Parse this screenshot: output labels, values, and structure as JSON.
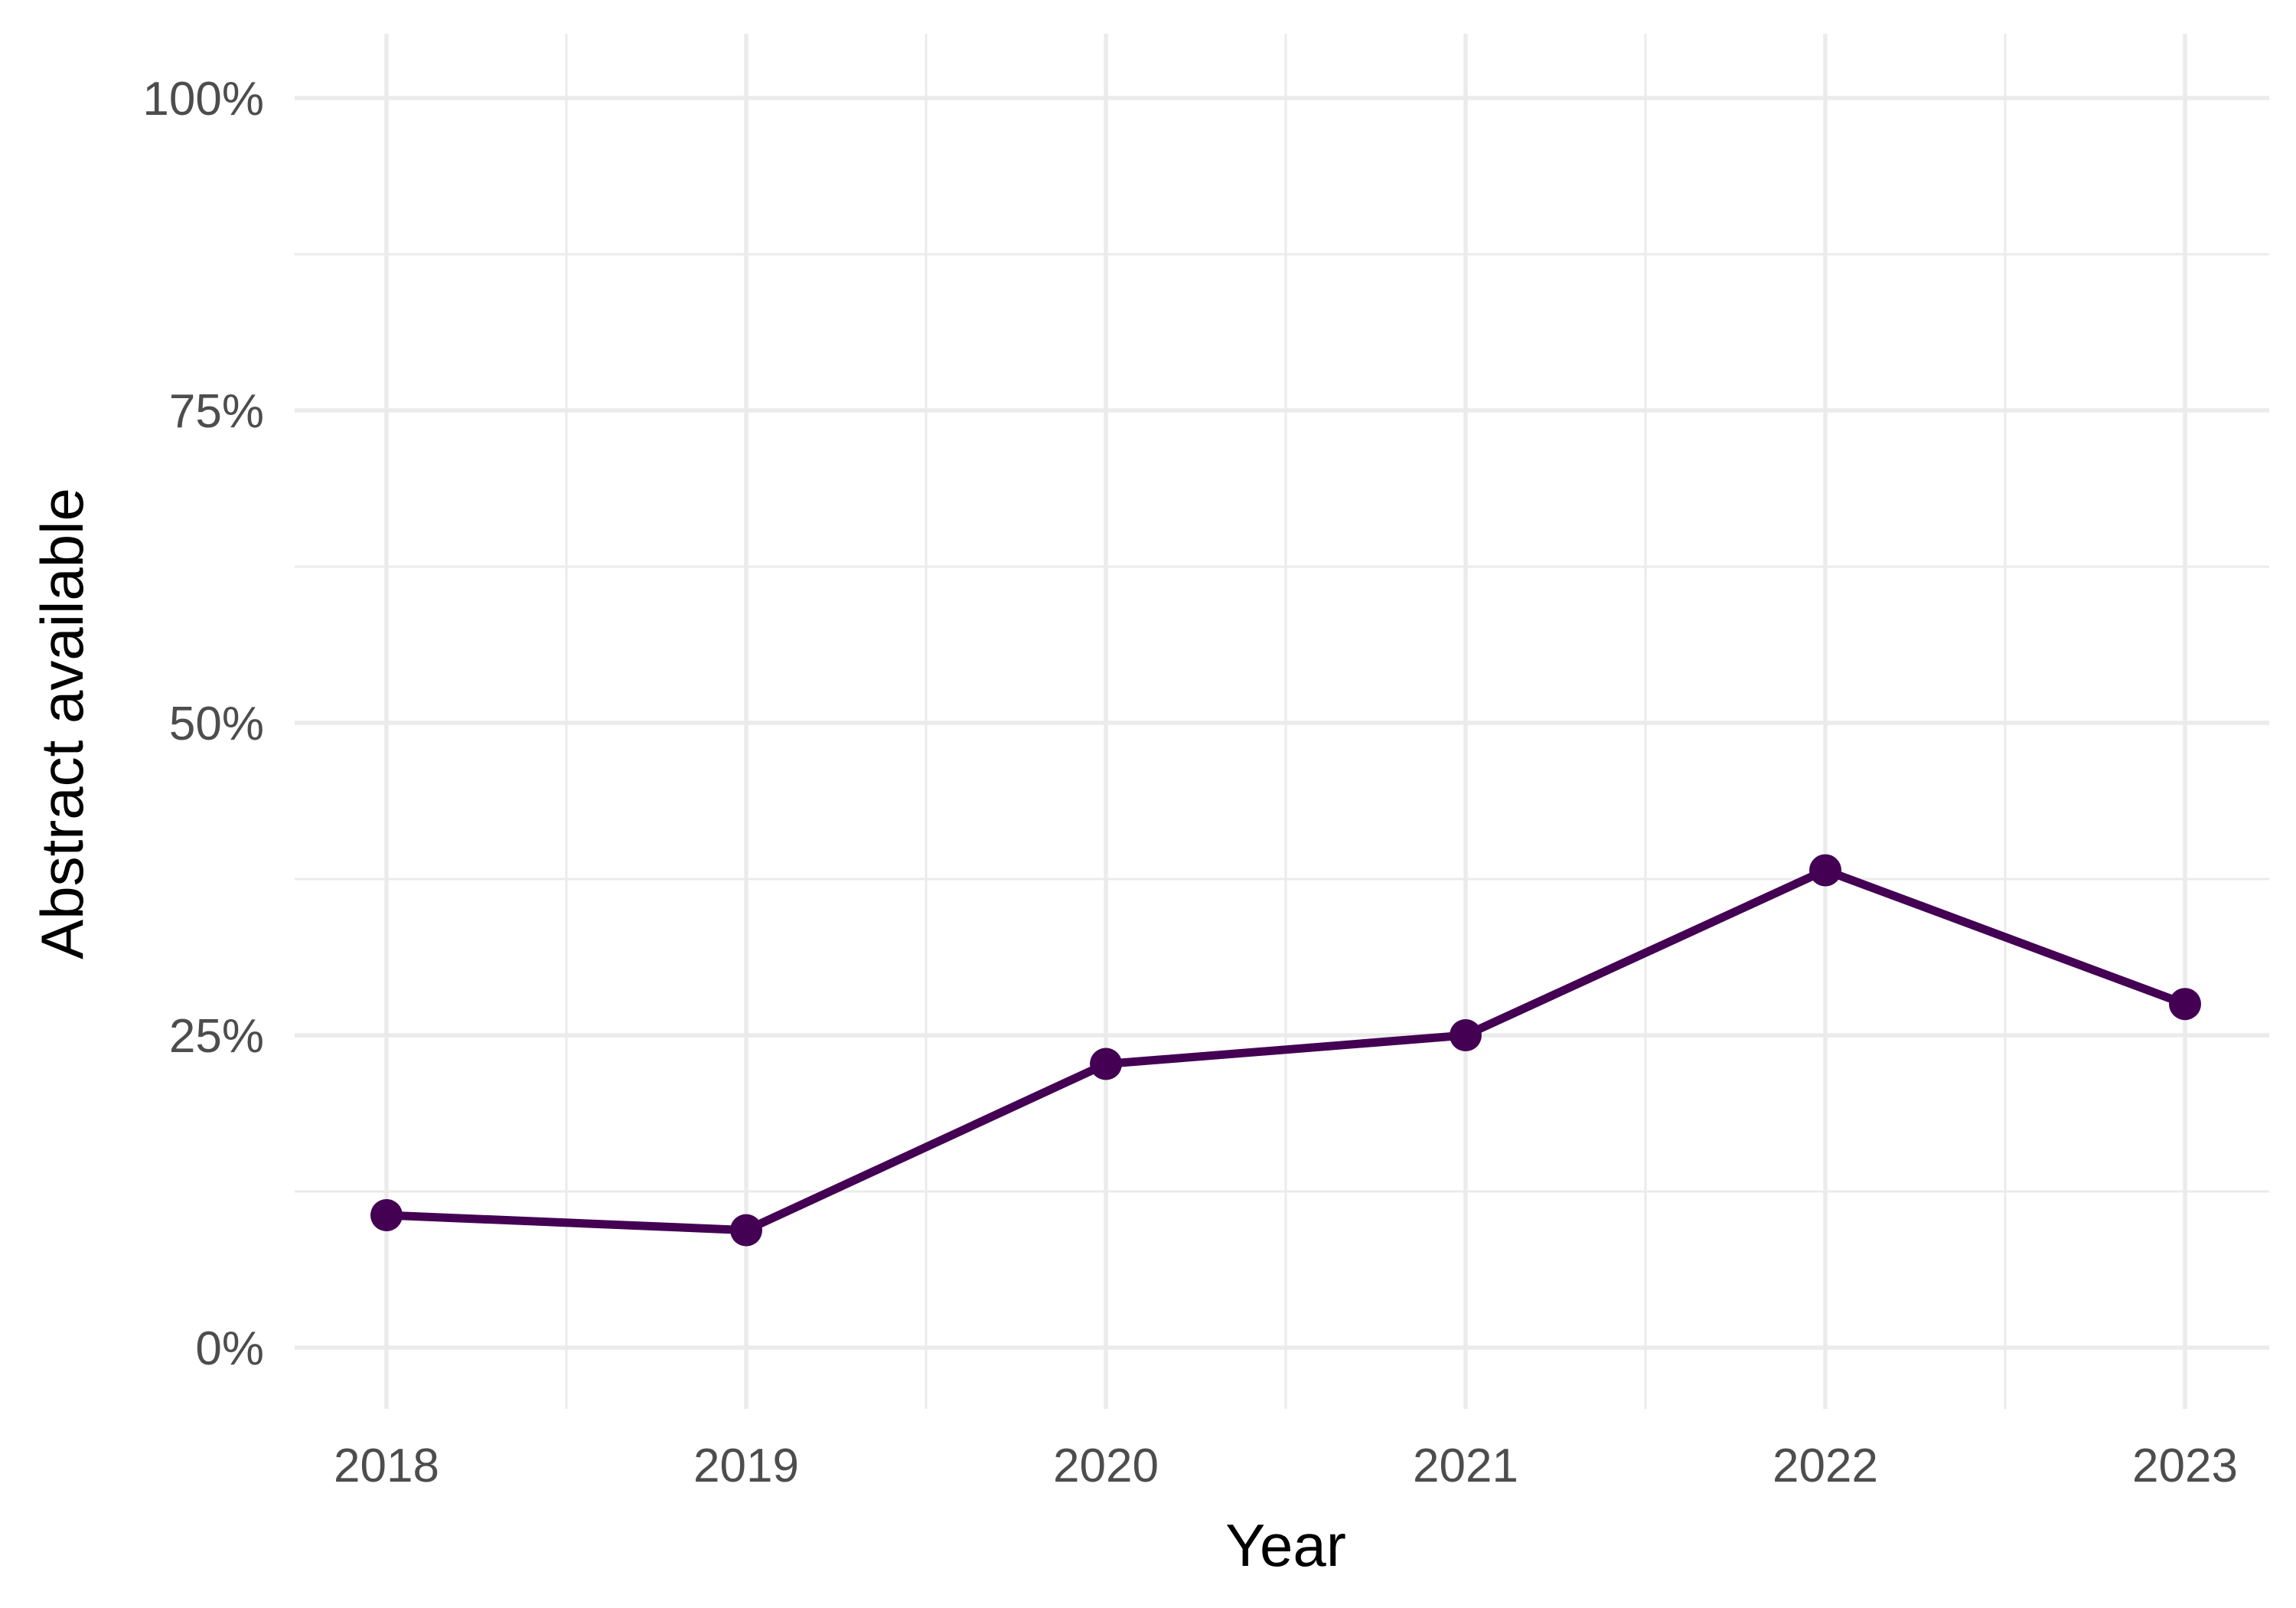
{
  "chart_data": {
    "type": "line",
    "x": [
      "2018",
      "2019",
      "2020",
      "2021",
      "2022",
      "2023"
    ],
    "series": [
      {
        "values": [
          10.6,
          9.4,
          22.7,
          25.0,
          38.2,
          27.5
        ]
      }
    ],
    "xlabel": "Year",
    "ylabel": "Abstract available",
    "ylim": [
      0,
      100
    ],
    "y_ticks": [
      0,
      25,
      50,
      75,
      100
    ],
    "y_tick_labels": [
      "0%",
      "25%",
      "50%",
      "75%",
      "100%"
    ],
    "x_tick_labels": [
      "2018",
      "2019",
      "2020",
      "2021",
      "2022",
      "2023"
    ],
    "grid": true,
    "legend": "none",
    "colors": {
      "line": "#440154",
      "grid": "#ebebeb"
    }
  }
}
